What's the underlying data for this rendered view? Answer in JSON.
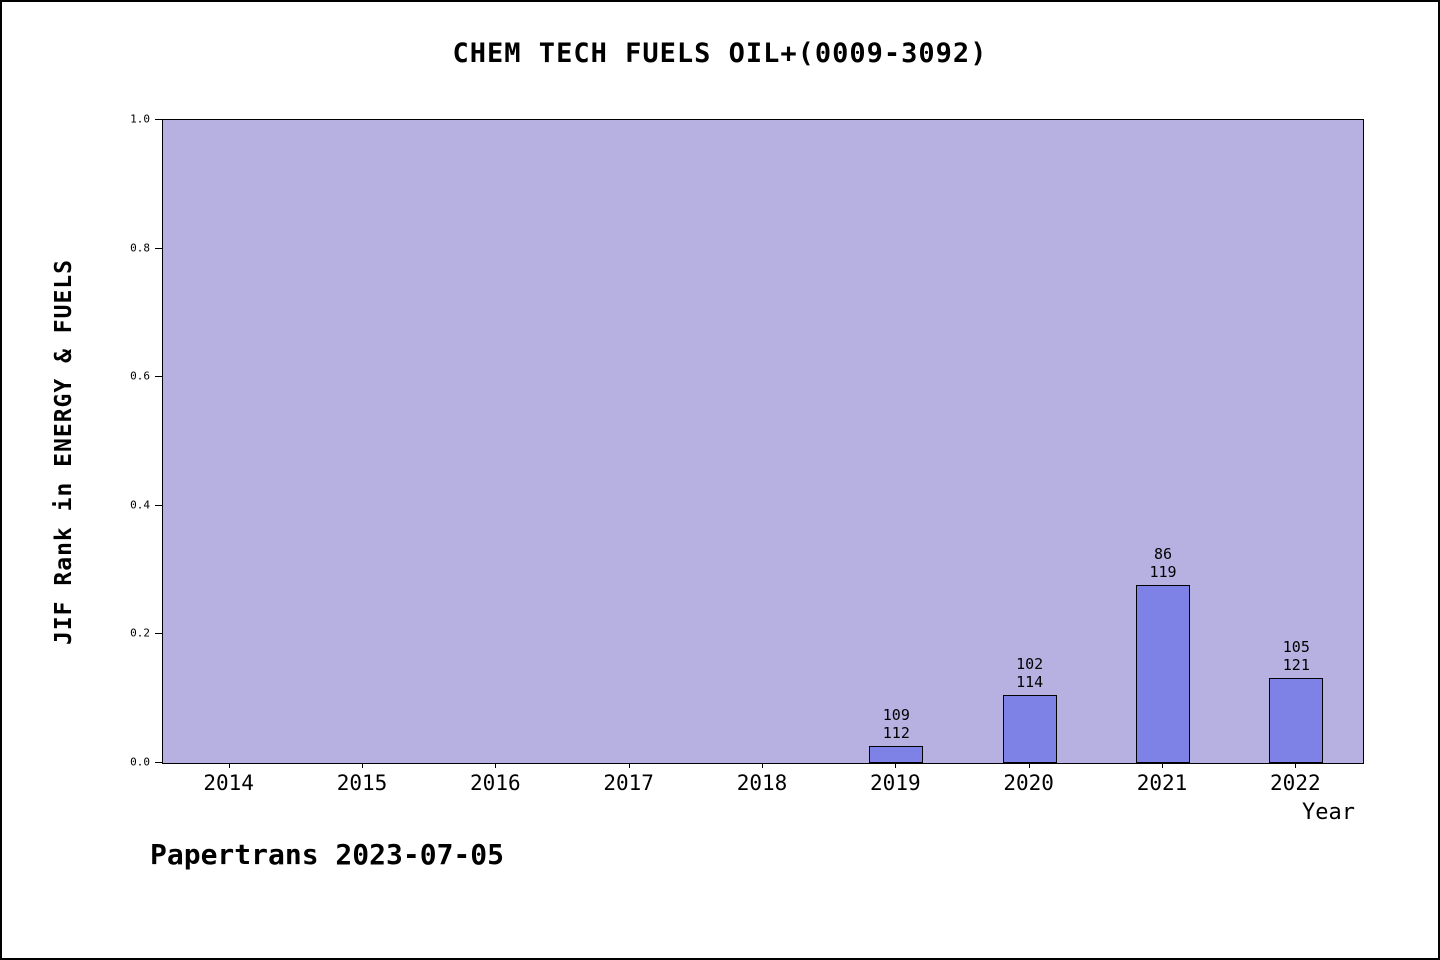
{
  "title": "CHEM TECH FUELS OIL+(0009-3092)",
  "footer": "Papertrans 2023-07-05",
  "colors": {
    "plot_background": "#b7b1e2",
    "bar_fill": "#7e81e6",
    "axis": "#000000"
  },
  "chart_data": {
    "type": "bar",
    "title": "CHEM TECH FUELS OIL+(0009-3092)",
    "xlabel": "Year",
    "ylabel": "JIF Rank in ENERGY & FUELS",
    "ylim": [
      0.0,
      1.0
    ],
    "yticks": [
      0.0,
      0.2,
      0.4,
      0.6,
      0.8,
      1.0
    ],
    "grid": false,
    "legend": false,
    "categories": [
      "2014",
      "2015",
      "2016",
      "2017",
      "2018",
      "2019",
      "2020",
      "2021",
      "2022"
    ],
    "bars": [
      {
        "year": "2019",
        "rank": 109,
        "total": 112,
        "value": 0.027
      },
      {
        "year": "2020",
        "rank": 102,
        "total": 114,
        "value": 0.105
      },
      {
        "year": "2021",
        "rank": 86,
        "total": 119,
        "value": 0.277
      },
      {
        "year": "2022",
        "rank": 105,
        "total": 121,
        "value": 0.132
      }
    ],
    "annotation_note": "bar labels show rank (top) over total (bottom); bar height = 1 - rank/total"
  }
}
